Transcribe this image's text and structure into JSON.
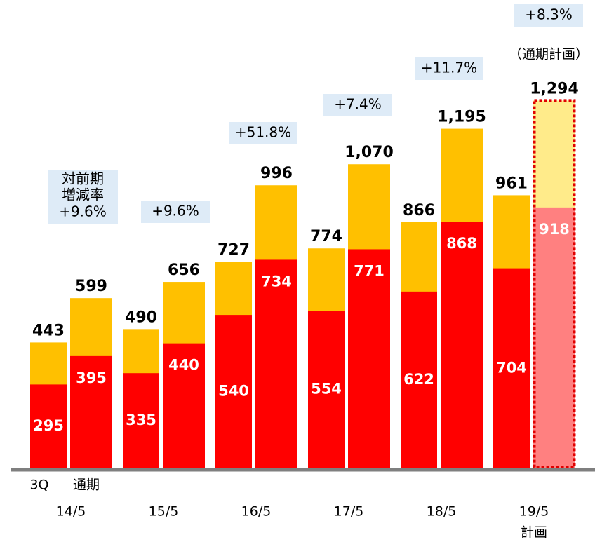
{
  "chart_data": {
    "type": "bar",
    "categories": [
      "14/5",
      "15/5",
      "16/5",
      "17/5",
      "18/5",
      "19/5"
    ],
    "category_note": "計画",
    "ylim": [
      0,
      1300
    ],
    "series": [
      {
        "name": "3Q",
        "values": [
          295,
          335,
          540,
          554,
          622,
          704
        ],
        "totals": [
          443,
          490,
          727,
          774,
          866,
          961
        ],
        "color": "#ff0000",
        "top_color": "#ffc000"
      },
      {
        "name": "通期",
        "values": [
          395,
          440,
          734,
          771,
          868,
          918
        ],
        "totals": [
          599,
          656,
          996,
          1070,
          1195,
          1294
        ],
        "total_labels": [
          "599",
          "656",
          "996",
          "1,070",
          "1,195",
          "1,294"
        ],
        "color": "#ff0000",
        "top_color": "#ffc000",
        "plan_color": "#ff8080",
        "plan_top_color": "#ffeb8a"
      }
    ],
    "growth_caption": [
      "対前期",
      "増減率"
    ],
    "growth": [
      "+9.6%",
      "+9.6%",
      "+51.8%",
      "+7.4%",
      "+11.7%",
      "+8.3%"
    ],
    "plan_annotation": "（通期計画）"
  }
}
